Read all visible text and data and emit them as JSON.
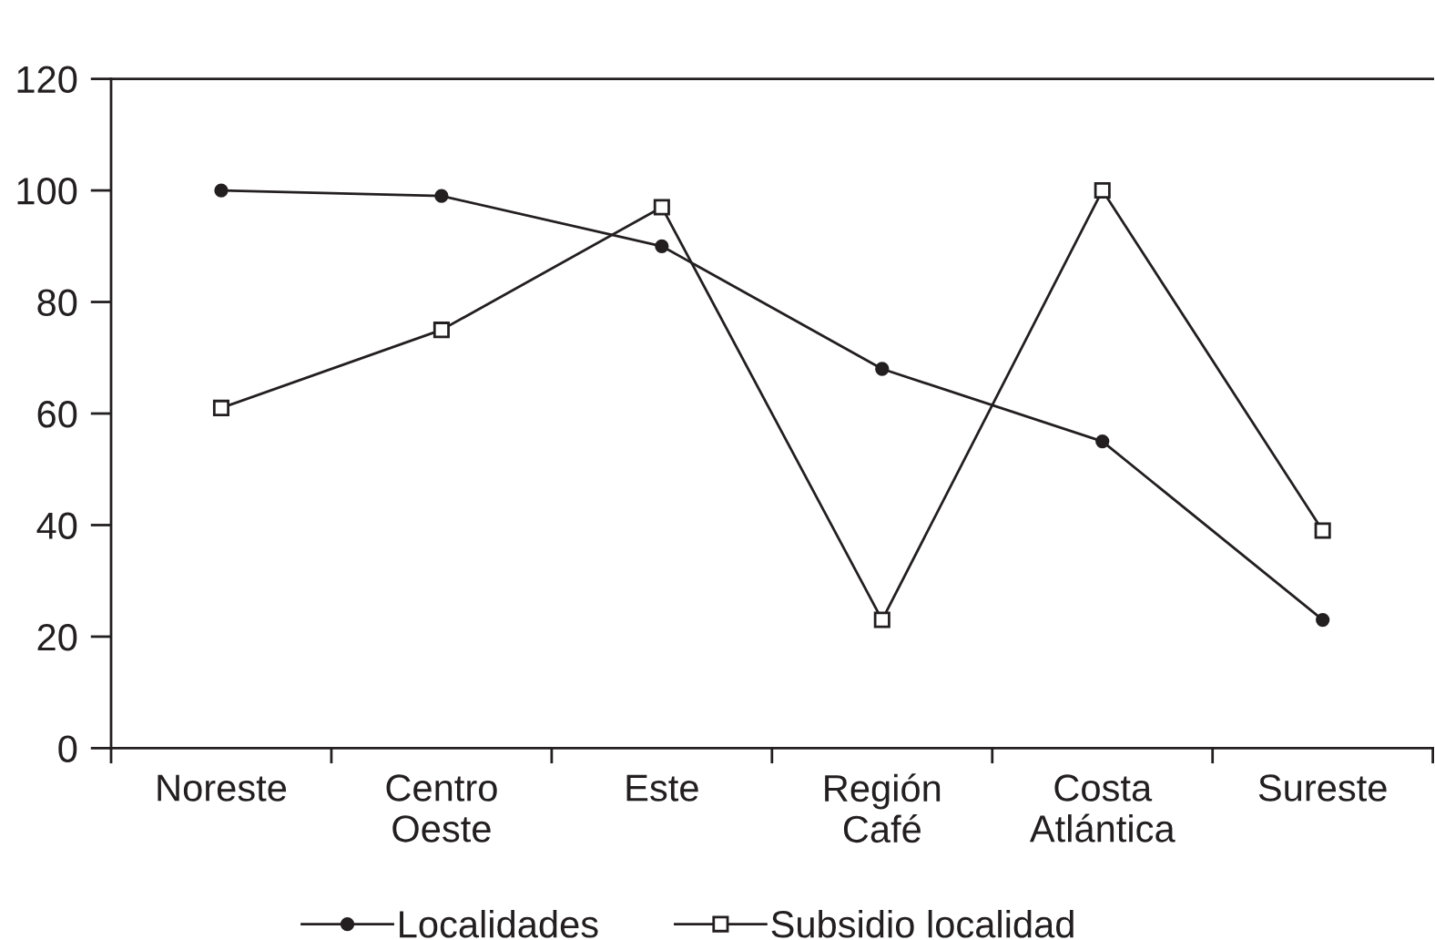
{
  "chart_data": {
    "type": "line",
    "categories": [
      "Noreste",
      "Centro\nOeste",
      "Este",
      "Región\nCafé",
      "Costa\nAtlántica",
      "Sureste"
    ],
    "series": [
      {
        "name": "Localidades",
        "color": "#231f20",
        "marker": "circle",
        "values": [
          100,
          99,
          90,
          68,
          55,
          23
        ]
      },
      {
        "name": "Subsidio localidad",
        "color": "#231f20",
        "marker": "square",
        "values": [
          61,
          75,
          97,
          23,
          100,
          39
        ]
      }
    ],
    "ylim": [
      0,
      120
    ],
    "yticks": [
      0,
      20,
      40,
      60,
      80,
      100,
      120
    ],
    "legend": "bottom",
    "line_style": "solid"
  }
}
